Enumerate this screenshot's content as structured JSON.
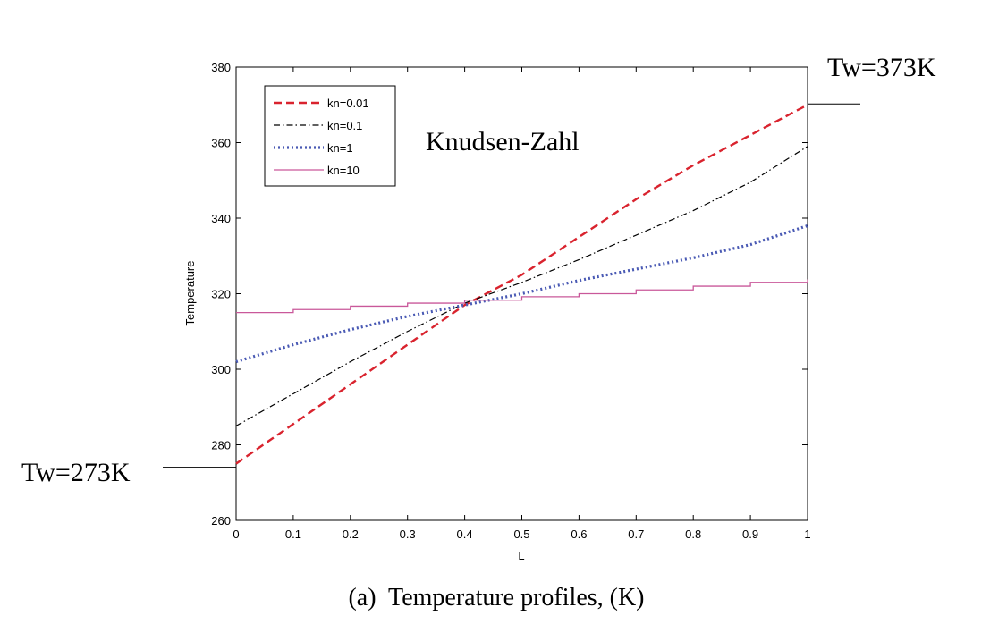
{
  "chart_data": {
    "type": "line",
    "title": "",
    "xlabel": "L",
    "ylabel": "Temperature",
    "xlim": [
      0,
      1
    ],
    "ylim": [
      260,
      380
    ],
    "xticks": [
      0,
      0.1,
      0.2,
      0.3,
      0.4,
      0.5,
      0.6,
      0.7,
      0.8,
      0.9,
      1
    ],
    "xtick_labels": [
      "0",
      "0.1",
      "0.2",
      "0.3",
      "0.4",
      "0.5",
      "0.6",
      "0.7",
      "0.8",
      "0.9",
      "1"
    ],
    "yticks": [
      260,
      280,
      300,
      320,
      340,
      360,
      380
    ],
    "ytick_labels": [
      "260",
      "280",
      "300",
      "320",
      "340",
      "360",
      "380"
    ],
    "grid": false,
    "legend_position": "top-left",
    "series": [
      {
        "name": "kn=0.01",
        "color": "#d9232e",
        "style": "dashed",
        "x": [
          0,
          0.1,
          0.2,
          0.3,
          0.4,
          0.5,
          0.6,
          0.7,
          0.8,
          0.9,
          1
        ],
        "y": [
          275,
          285.5,
          296,
          306.5,
          317,
          325,
          335,
          345,
          354,
          362,
          370
        ]
      },
      {
        "name": "kn=0.1",
        "color": "#000000",
        "style": "dashdot",
        "x": [
          0,
          0.1,
          0.2,
          0.3,
          0.4,
          0.5,
          0.6,
          0.7,
          0.8,
          0.9,
          1
        ],
        "y": [
          285,
          293.5,
          302,
          310,
          317.5,
          323,
          329,
          335.5,
          342,
          349.5,
          359
        ]
      },
      {
        "name": "kn=1",
        "color": "#4a5ab4",
        "style": "dotted",
        "x": [
          0,
          0.1,
          0.2,
          0.3,
          0.4,
          0.5,
          0.6,
          0.7,
          0.8,
          0.9,
          1
        ],
        "y": [
          302,
          306.5,
          310.5,
          314,
          317,
          320,
          323.5,
          326.5,
          329.5,
          333,
          338
        ]
      },
      {
        "name": "kn=10",
        "color": "#c9589a",
        "style": "solid",
        "x": [
          0,
          0.1,
          0.2,
          0.3,
          0.4,
          0.5,
          0.6,
          0.7,
          0.8,
          0.9,
          1
        ],
        "y": [
          315,
          315.8,
          316.7,
          317.5,
          318.3,
          319.2,
          320,
          321,
          322,
          323,
          323.8
        ]
      }
    ],
    "annotations": [
      {
        "text": "Knudsen-Zahl",
        "role": "inset-title"
      },
      {
        "text": "Tw=373K",
        "at_x": 1,
        "at_y": 370,
        "side": "right"
      },
      {
        "text": "Tw=273K",
        "at_x": 0,
        "at_y": 275,
        "side": "left"
      }
    ],
    "caption": "(a)  Temperature profiles, (K)"
  }
}
